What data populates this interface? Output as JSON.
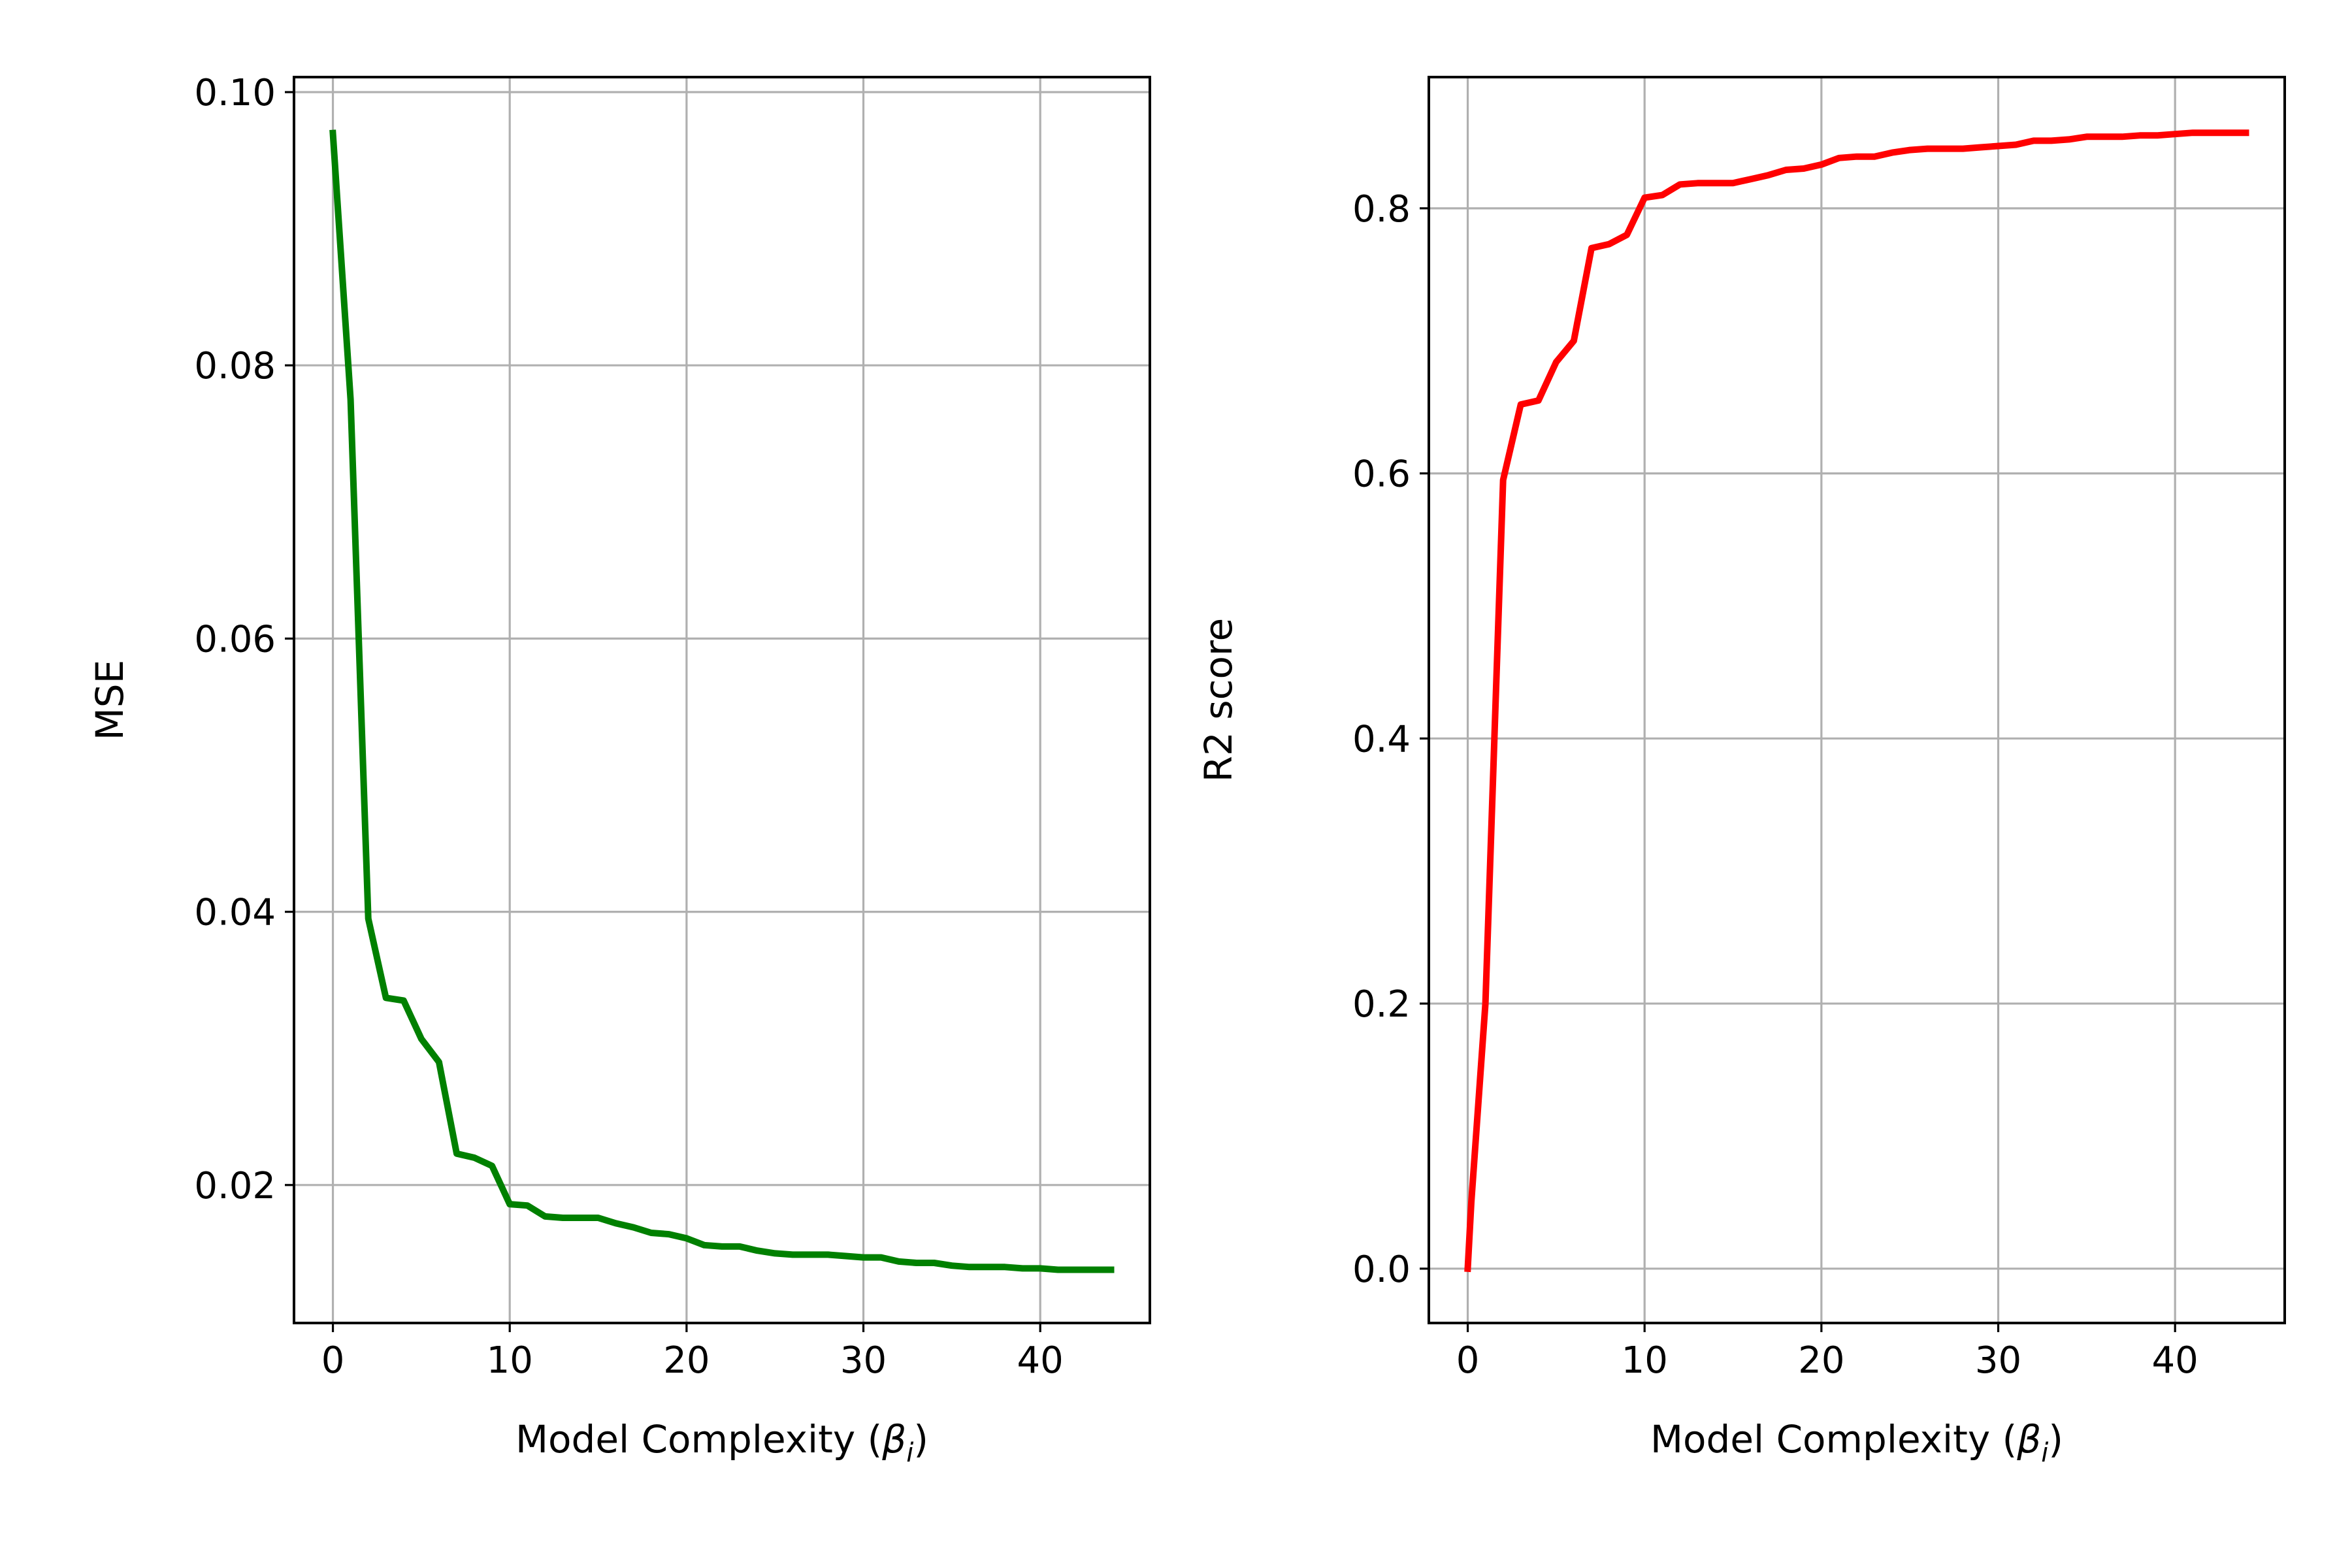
{
  "chart_data": [
    {
      "type": "line",
      "xlabel": "Model Complexity (",
      "xlabel_symbol": "β",
      "xlabel_subscript": "i",
      "xlabel_close": ")",
      "ylabel": "MSE",
      "xlim": [
        -2.2,
        46.2
      ],
      "ylim": [
        0.0099,
        0.1011
      ],
      "xticks": [
        0,
        10,
        20,
        30,
        40
      ],
      "yticks": [
        0.02,
        0.04,
        0.06,
        0.08,
        0.1
      ],
      "xtick_labels": [
        "0",
        "10",
        "20",
        "30",
        "40"
      ],
      "ytick_labels": [
        "0.02",
        "0.04",
        "0.06",
        "0.08",
        "0.10"
      ],
      "grid": true,
      "series": [
        {
          "color": "#008000",
          "x": [
            0,
            1,
            2,
            3,
            4,
            5,
            6,
            7,
            8,
            9,
            10,
            11,
            12,
            13,
            14,
            15,
            16,
            17,
            18,
            19,
            20,
            21,
            22,
            23,
            24,
            25,
            26,
            27,
            28,
            29,
            30,
            31,
            32,
            33,
            34,
            35,
            36,
            37,
            38,
            39,
            40,
            41,
            42,
            43,
            44
          ],
          "y": [
            0.097,
            0.0775,
            0.0395,
            0.0337,
            0.0335,
            0.0307,
            0.029,
            0.0223,
            0.022,
            0.0214,
            0.0186,
            0.0185,
            0.0177,
            0.0176,
            0.0176,
            0.0176,
            0.0172,
            0.0169,
            0.0165,
            0.0164,
            0.0161,
            0.0156,
            0.0155,
            0.0155,
            0.0152,
            0.015,
            0.0149,
            0.0149,
            0.0149,
            0.0148,
            0.0147,
            0.0147,
            0.0144,
            0.0143,
            0.0143,
            0.0141,
            0.014,
            0.014,
            0.014,
            0.0139,
            0.0139,
            0.0138,
            0.0138,
            0.0138,
            0.0138
          ]
        }
      ]
    },
    {
      "type": "line",
      "xlabel": "Model Complexity (",
      "xlabel_symbol": "β",
      "xlabel_subscript": "i",
      "xlabel_close": ")",
      "ylabel": "R2 score",
      "xlim": [
        -2.2,
        46.2
      ],
      "ylim": [
        -0.041,
        0.899
      ],
      "xticks": [
        0,
        10,
        20,
        30,
        40
      ],
      "yticks": [
        0.0,
        0.2,
        0.4,
        0.6,
        0.8
      ],
      "xtick_labels": [
        "0",
        "10",
        "20",
        "30",
        "40"
      ],
      "ytick_labels": [
        "0.0",
        "0.2",
        "0.4",
        "0.6",
        "0.8"
      ],
      "grid": true,
      "series": [
        {
          "color": "#ff0000",
          "x": [
            0,
            0.2,
            1,
            2,
            3,
            4,
            5,
            6,
            7,
            8,
            9,
            10,
            11,
            12,
            13,
            14,
            15,
            16,
            17,
            18,
            19,
            20,
            21,
            22,
            23,
            24,
            25,
            26,
            27,
            28,
            29,
            30,
            31,
            32,
            33,
            34,
            35,
            36,
            37,
            38,
            39,
            40,
            41,
            42,
            43,
            44
          ],
          "y": [
            0.0,
            0.05,
            0.2,
            0.595,
            0.652,
            0.655,
            0.684,
            0.7,
            0.77,
            0.773,
            0.78,
            0.808,
            0.81,
            0.818,
            0.819,
            0.819,
            0.819,
            0.822,
            0.825,
            0.829,
            0.83,
            0.833,
            0.838,
            0.839,
            0.839,
            0.842,
            0.844,
            0.845,
            0.845,
            0.845,
            0.846,
            0.847,
            0.848,
            0.851,
            0.851,
            0.852,
            0.854,
            0.854,
            0.854,
            0.855,
            0.855,
            0.856,
            0.857,
            0.857,
            0.857,
            0.857
          ]
        }
      ]
    }
  ]
}
